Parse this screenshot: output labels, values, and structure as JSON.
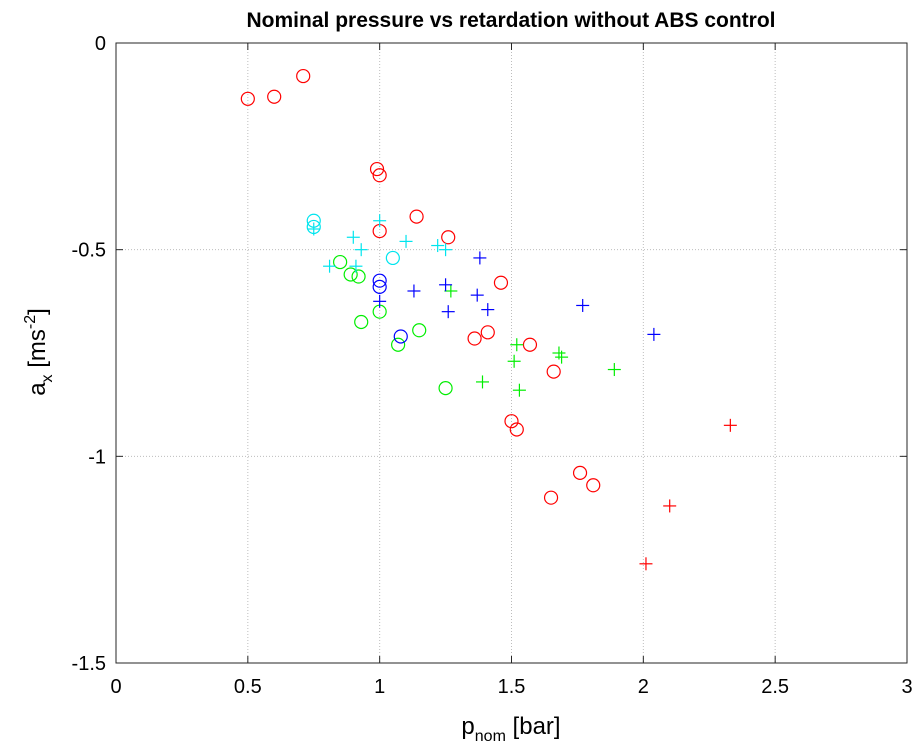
{
  "chart_data": {
    "type": "scatter",
    "title": "Nominal pressure vs retardation without ABS control",
    "xlabel": {
      "main": "p",
      "sub": "nom",
      "unit": " [bar]"
    },
    "ylabel": {
      "main": "a",
      "sub": "x",
      "unit": " [ms",
      "sup": "-2",
      "close": "]"
    },
    "xlim": [
      0,
      3
    ],
    "ylim": [
      -1.5,
      0
    ],
    "xticks": [
      "0",
      "0.5",
      "1",
      "1.5",
      "2",
      "2.5",
      "3"
    ],
    "yticks": [
      "-1.5",
      "-1",
      "-0.5",
      "0"
    ],
    "grid": true,
    "series": [
      {
        "color": "#ff0000",
        "marker": "circle",
        "points": [
          [
            0.5,
            -0.135
          ],
          [
            0.6,
            -0.13
          ],
          [
            0.71,
            -0.08
          ],
          [
            0.99,
            -0.305
          ],
          [
            1.0,
            -0.32
          ],
          [
            1.0,
            -0.455
          ],
          [
            1.14,
            -0.42
          ],
          [
            1.26,
            -0.47
          ],
          [
            1.36,
            -0.715
          ],
          [
            1.41,
            -0.7
          ],
          [
            1.46,
            -0.58
          ],
          [
            1.5,
            -0.915
          ],
          [
            1.52,
            -0.935
          ],
          [
            1.57,
            -0.73
          ],
          [
            1.66,
            -0.795
          ],
          [
            1.65,
            -1.1
          ],
          [
            1.76,
            -1.04
          ],
          [
            1.81,
            -1.07
          ]
        ]
      },
      {
        "color": "#ff0000",
        "marker": "plus",
        "points": [
          [
            2.01,
            -1.26
          ],
          [
            2.1,
            -1.12
          ],
          [
            2.33,
            -0.925
          ]
        ]
      },
      {
        "color": "#00ee00",
        "marker": "circle",
        "points": [
          [
            0.85,
            -0.53
          ],
          [
            0.89,
            -0.56
          ],
          [
            0.92,
            -0.565
          ],
          [
            0.93,
            -0.675
          ],
          [
            1.0,
            -0.65
          ],
          [
            1.07,
            -0.73
          ],
          [
            1.15,
            -0.695
          ],
          [
            1.25,
            -0.835
          ]
        ]
      },
      {
        "color": "#00ee00",
        "marker": "plus",
        "points": [
          [
            1.27,
            -0.6
          ],
          [
            1.39,
            -0.82
          ],
          [
            1.51,
            -0.77
          ],
          [
            1.52,
            -0.73
          ],
          [
            1.53,
            -0.84
          ],
          [
            1.68,
            -0.75
          ],
          [
            1.69,
            -0.76
          ],
          [
            1.89,
            -0.79
          ]
        ]
      },
      {
        "color": "#0000ff",
        "marker": "circle",
        "points": [
          [
            1.0,
            -0.59
          ],
          [
            1.0,
            -0.575
          ],
          [
            1.08,
            -0.71
          ]
        ]
      },
      {
        "color": "#0000ff",
        "marker": "plus",
        "points": [
          [
            1.0,
            -0.625
          ],
          [
            1.13,
            -0.6
          ],
          [
            1.25,
            -0.585
          ],
          [
            1.26,
            -0.65
          ],
          [
            1.37,
            -0.61
          ],
          [
            1.38,
            -0.52
          ],
          [
            1.41,
            -0.645
          ],
          [
            1.77,
            -0.635
          ],
          [
            2.04,
            -0.705
          ]
        ]
      },
      {
        "color": "#00e5ee",
        "marker": "circle",
        "points": [
          [
            0.75,
            -0.43
          ],
          [
            0.75,
            -0.445
          ],
          [
            1.05,
            -0.52
          ]
        ]
      },
      {
        "color": "#00e5ee",
        "marker": "plus",
        "points": [
          [
            0.75,
            -0.45
          ],
          [
            0.81,
            -0.54
          ],
          [
            0.9,
            -0.47
          ],
          [
            0.91,
            -0.54
          ],
          [
            0.93,
            -0.5
          ],
          [
            1.0,
            -0.43
          ],
          [
            1.1,
            -0.48
          ],
          [
            1.22,
            -0.49
          ],
          [
            1.25,
            -0.5
          ]
        ]
      }
    ]
  }
}
